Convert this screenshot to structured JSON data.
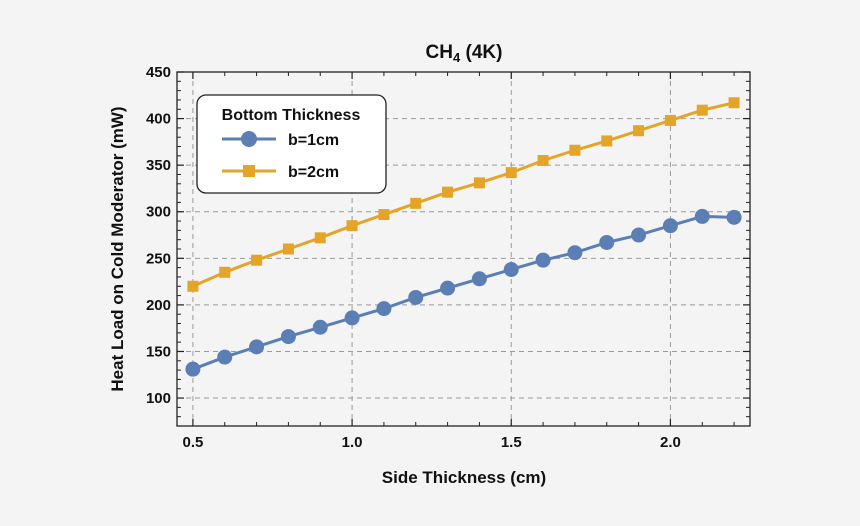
{
  "chart_data": {
    "type": "line",
    "title": "CH",
    "title_sub": "4",
    "title_suffix": " (4K)",
    "xlabel": "Side Thickness (cm)",
    "ylabel": "Heat Load on Cold Moderator (mW)",
    "xlim": [
      0.45,
      2.25
    ],
    "ylim": [
      70,
      450
    ],
    "xticks": [
      0.5,
      1.0,
      1.5,
      2.0
    ],
    "xtick_labels": [
      "0.5",
      "1.0",
      "1.5",
      "2.0"
    ],
    "yticks": [
      100,
      150,
      200,
      250,
      300,
      350,
      400,
      450
    ],
    "ytick_labels": [
      "100",
      "150",
      "200",
      "250",
      "300",
      "350",
      "400",
      "450"
    ],
    "grid": true,
    "legend": {
      "title": "Bottom Thickness",
      "position": "top-left"
    },
    "x": [
      0.5,
      0.6,
      0.7,
      0.8,
      0.9,
      1.0,
      1.1,
      1.2,
      1.3,
      1.4,
      1.5,
      1.6,
      1.7,
      1.8,
      1.9,
      2.0,
      2.1,
      2.2
    ],
    "series": [
      {
        "name": "b=1cm",
        "color": "#5b7fb5",
        "marker": "circle",
        "values": [
          131,
          144,
          155,
          166,
          176,
          186,
          196,
          208,
          218,
          228,
          238,
          248,
          256,
          267,
          275,
          285,
          295,
          294
        ]
      },
      {
        "name": "b=2cm",
        "color": "#e4a428",
        "marker": "square",
        "values": [
          220,
          235,
          248,
          260,
          272,
          285,
          297,
          309,
          321,
          331,
          342,
          355,
          366,
          376,
          387,
          398,
          409,
          417
        ]
      }
    ]
  }
}
